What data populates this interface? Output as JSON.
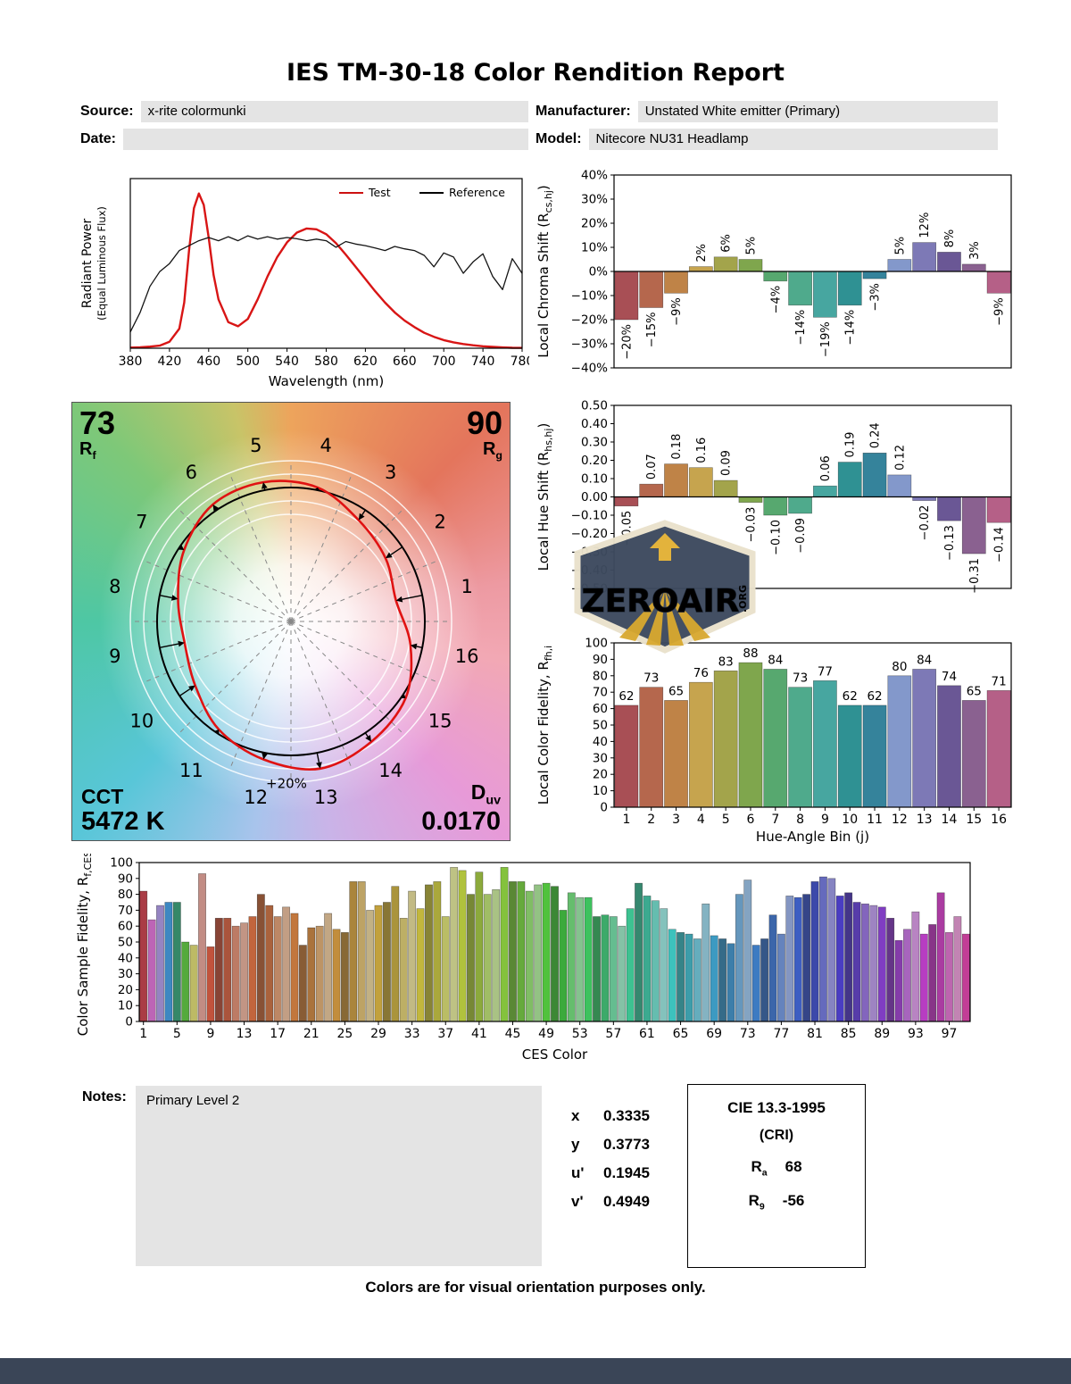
{
  "title": "IES TM-30-18 Color Rendition Report",
  "header": {
    "source_label": "Source:",
    "source": "x-rite colormunki",
    "manufacturer_label": "Manufacturer:",
    "manufacturer": "Unstated White emitter (Primary)",
    "date_label": "Date:",
    "date": "",
    "model_label": "Model:",
    "model": "Nitecore NU31 Headlamp"
  },
  "cvg": {
    "rf_value": "73",
    "rf_sym": "R",
    "rf_sub": "f",
    "rg_value": "90",
    "rg_sym": "R",
    "rg_sub": "g",
    "cct_label": "CCT",
    "cct_value": "5472 K",
    "duv_sym": "D",
    "duv_sub": "uv",
    "duv_value": "0.0170",
    "ring_label": "+20%",
    "bin_numbers": [
      1,
      2,
      3,
      4,
      5,
      6,
      7,
      8,
      9,
      10,
      11,
      12,
      13,
      14,
      15,
      16
    ],
    "test_color": "#e01212",
    "reference_color": "#000000"
  },
  "hue_bin_colors": [
    "#a84f55",
    "#b5674d",
    "#bf8347",
    "#c6a44e",
    "#a3a44b",
    "#7fa64d",
    "#57a86f",
    "#4faa8c",
    "#47a6a0",
    "#2f9193",
    "#35839b",
    "#8398cb",
    "#7d79b6",
    "#6a5795",
    "#8a6190",
    "#b56087"
  ],
  "ces_palette": {
    "stops": [
      [
        1,
        355
      ],
      [
        8,
        8
      ],
      [
        14,
        18
      ],
      [
        20,
        28
      ],
      [
        26,
        40
      ],
      [
        32,
        50
      ],
      [
        38,
        64
      ],
      [
        44,
        88
      ],
      [
        50,
        115
      ],
      [
        56,
        145
      ],
      [
        62,
        170
      ],
      [
        68,
        195
      ],
      [
        74,
        212
      ],
      [
        80,
        228
      ],
      [
        86,
        255
      ],
      [
        92,
        285
      ],
      [
        99,
        320
      ]
    ],
    "sat": [
      48,
      40,
      34,
      52,
      44
    ],
    "light": [
      45,
      57,
      64,
      50,
      37
    ]
  },
  "chart_data": [
    {
      "id": "spd",
      "type": "line",
      "xlabel": "Wavelength (nm)",
      "ylabel_line1": "Radiant Power",
      "ylabel_line2": "(Equal Luminous Flux)",
      "xlim": [
        380,
        780
      ],
      "ylim": [
        0,
        1
      ],
      "xticks": [
        380,
        420,
        460,
        500,
        540,
        580,
        620,
        660,
        700,
        740,
        780
      ],
      "legend": [
        {
          "label": "Test",
          "color": "#cc1111"
        },
        {
          "label": "Reference",
          "color": "#000000"
        }
      ],
      "series": [
        {
          "name": "Test",
          "color": "#d81515",
          "width": 2.4,
          "x": [
            380,
            390,
            400,
            410,
            420,
            430,
            435,
            440,
            445,
            450,
            455,
            460,
            465,
            470,
            480,
            490,
            500,
            510,
            520,
            530,
            540,
            550,
            560,
            570,
            580,
            590,
            600,
            610,
            620,
            630,
            640,
            650,
            660,
            670,
            680,
            690,
            700,
            710,
            720,
            730,
            740,
            750,
            760,
            770,
            780
          ],
          "y": [
            0.004,
            0.006,
            0.01,
            0.016,
            0.04,
            0.12,
            0.28,
            0.6,
            0.86,
            0.95,
            0.88,
            0.68,
            0.45,
            0.3,
            0.16,
            0.135,
            0.18,
            0.3,
            0.44,
            0.56,
            0.65,
            0.71,
            0.735,
            0.73,
            0.7,
            0.645,
            0.575,
            0.5,
            0.425,
            0.35,
            0.28,
            0.22,
            0.17,
            0.13,
            0.095,
            0.07,
            0.05,
            0.036,
            0.026,
            0.018,
            0.012,
            0.008,
            0.005,
            0.003,
            0.002
          ]
        },
        {
          "name": "Reference",
          "color": "#141414",
          "width": 1.3,
          "x": [
            380,
            390,
            400,
            410,
            420,
            430,
            440,
            450,
            460,
            470,
            480,
            490,
            500,
            510,
            520,
            530,
            540,
            550,
            560,
            570,
            580,
            590,
            600,
            610,
            620,
            630,
            640,
            650,
            660,
            670,
            680,
            690,
            700,
            710,
            720,
            730,
            740,
            750,
            760,
            770,
            780
          ],
          "y": [
            0.1,
            0.22,
            0.38,
            0.47,
            0.52,
            0.6,
            0.63,
            0.66,
            0.68,
            0.66,
            0.685,
            0.66,
            0.69,
            0.67,
            0.685,
            0.67,
            0.68,
            0.672,
            0.66,
            0.67,
            0.66,
            0.62,
            0.655,
            0.64,
            0.63,
            0.615,
            0.6,
            0.625,
            0.61,
            0.6,
            0.57,
            0.5,
            0.585,
            0.56,
            0.46,
            0.53,
            0.58,
            0.44,
            0.36,
            0.55,
            0.46
          ]
        }
      ]
    },
    {
      "id": "chroma",
      "type": "bar",
      "ylabel": [
        {
          "t": "Local Chroma Shift (R"
        },
        {
          "t": "cs,hj",
          "sub": true
        },
        {
          "t": ")"
        }
      ],
      "ylim": [
        -40,
        40
      ],
      "ystep": 10,
      "unit": "%",
      "values": [
        -20,
        -15,
        -9,
        2,
        6,
        5,
        -4,
        -14,
        -19,
        -14,
        -3,
        5,
        12,
        8,
        3,
        -9
      ]
    },
    {
      "id": "hueshift",
      "type": "bar",
      "ylabel": [
        {
          "t": "Local Hue Shift (R"
        },
        {
          "t": "hs,hj",
          "sub": true
        },
        {
          "t": ")"
        }
      ],
      "ylim": [
        -0.5,
        0.5
      ],
      "ystep": 0.1,
      "values": [
        -0.05,
        0.07,
        0.18,
        0.16,
        0.09,
        -0.03,
        -0.1,
        -0.09,
        0.06,
        0.19,
        0.24,
        0.12,
        -0.02,
        -0.13,
        -0.31,
        -0.14
      ]
    },
    {
      "id": "localfid",
      "type": "bar",
      "ylabel": [
        {
          "t": "Local Color Fidelity, R"
        },
        {
          "t": "fh,i",
          "sub": true
        }
      ],
      "xlabel": "Hue-Angle Bin (j)",
      "ylim": [
        0,
        100
      ],
      "ystep": 10,
      "values": [
        62,
        73,
        65,
        76,
        83,
        88,
        84,
        73,
        77,
        62,
        62,
        80,
        84,
        74,
        65,
        71
      ]
    },
    {
      "id": "ces",
      "type": "bar",
      "ylabel": [
        {
          "t": "Color Sample Fidelity, R"
        },
        {
          "t": "f,CESi",
          "sub": true
        }
      ],
      "xlabel": "CES Color",
      "ylim": [
        0,
        100
      ],
      "ystep": 10,
      "values": [
        82,
        64,
        73,
        75,
        75,
        50,
        48,
        93,
        47,
        65,
        65,
        60,
        62,
        66,
        80,
        73,
        66,
        72,
        68,
        48,
        59,
        60,
        68,
        58,
        56,
        88,
        88,
        70,
        73,
        75,
        85,
        65,
        82,
        71,
        86,
        88,
        66,
        97,
        95,
        80,
        94,
        80,
        83,
        97,
        88,
        88,
        82,
        86,
        87,
        85,
        70,
        81,
        78,
        78,
        66,
        67,
        66,
        60,
        71,
        87,
        79,
        76,
        71,
        58,
        56,
        55,
        52,
        74,
        54,
        52,
        49,
        80,
        89,
        48,
        52,
        67,
        55,
        79,
        78,
        80,
        88,
        91,
        90,
        79,
        81,
        75,
        74,
        73,
        72,
        65,
        51,
        58,
        69,
        55,
        61,
        81,
        56,
        66,
        55
      ]
    }
  ],
  "watermark": {
    "main": "ZEROAIR",
    "suffix": ".ORG"
  },
  "notes": {
    "label": "Notes:",
    "text": "Primary Level 2"
  },
  "chromaticity": {
    "rows": [
      {
        "k": "x",
        "v": "0.3335"
      },
      {
        "k": "y",
        "v": "0.3773"
      },
      {
        "k": "u'",
        "v": "0.1945"
      },
      {
        "k": "v'",
        "v": "0.4949"
      }
    ]
  },
  "cri": {
    "title": "CIE 13.3-1995",
    "subtitle": "(CRI)",
    "ra_sym": "R",
    "ra_sub": "a",
    "ra_value": "68",
    "r9_sym": "R",
    "r9_sub": "9",
    "r9_value": "-56"
  },
  "footer": "Colors are for visual orientation purposes only."
}
